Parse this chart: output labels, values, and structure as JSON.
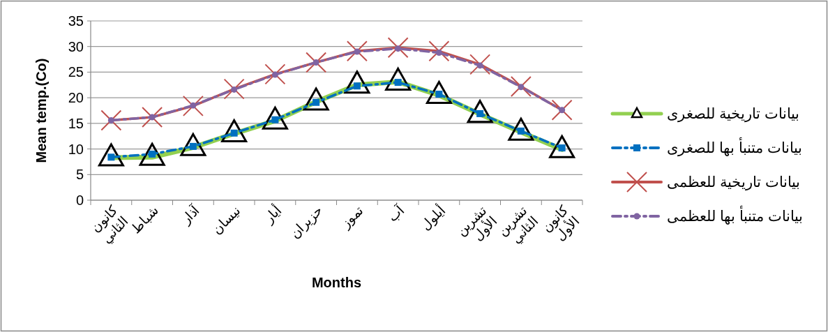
{
  "chart_data": {
    "type": "line",
    "xlabel": "Months",
    "ylabel": "Mean temp.(Co)",
    "categories": [
      "كانون الثاني",
      "شباط",
      "آذار",
      "نيسان",
      "أيار",
      "حزيران",
      "تموز",
      "آب",
      "أيلول",
      "تشرين الأول",
      "تشرين الثاني",
      "كانون الأول"
    ],
    "ylim": [
      0,
      35
    ],
    "yticks": [
      0,
      5,
      10,
      15,
      20,
      25,
      30,
      35
    ],
    "grid": "y",
    "legend": "right",
    "series": [
      {
        "name": "بيانات تاريخية للصغرى",
        "color": "#92d050",
        "marker": "triangle",
        "line_style": "solid",
        "values": [
          8.3,
          8.4,
          10.3,
          13.0,
          15.5,
          19.2,
          22.5,
          23.1,
          20.5,
          16.8,
          13.3,
          9.9
        ]
      },
      {
        "name": "بيانات متنبأ بها للصغرى",
        "color": "#0070c0",
        "marker": "square",
        "line_style": "dashed",
        "values": [
          8.4,
          9.0,
          10.5,
          13.1,
          15.7,
          19.1,
          22.3,
          23.0,
          20.7,
          16.9,
          13.5,
          10.2
        ]
      },
      {
        "name": "بيانات تاريخية للعظمى",
        "color": "#c0504d",
        "marker": "cross",
        "line_style": "solid",
        "values": [
          15.6,
          16.2,
          18.4,
          21.7,
          24.6,
          26.9,
          29.1,
          29.8,
          29.1,
          26.5,
          22.2,
          17.6
        ]
      },
      {
        "name": "بيانات متنبأ بها للعظمى",
        "color": "#8064a2",
        "marker": "circle",
        "line_style": "dashed",
        "values": [
          15.6,
          16.2,
          18.5,
          21.6,
          24.5,
          26.9,
          29.0,
          29.6,
          28.8,
          26.3,
          22.1,
          17.6
        ]
      }
    ]
  }
}
